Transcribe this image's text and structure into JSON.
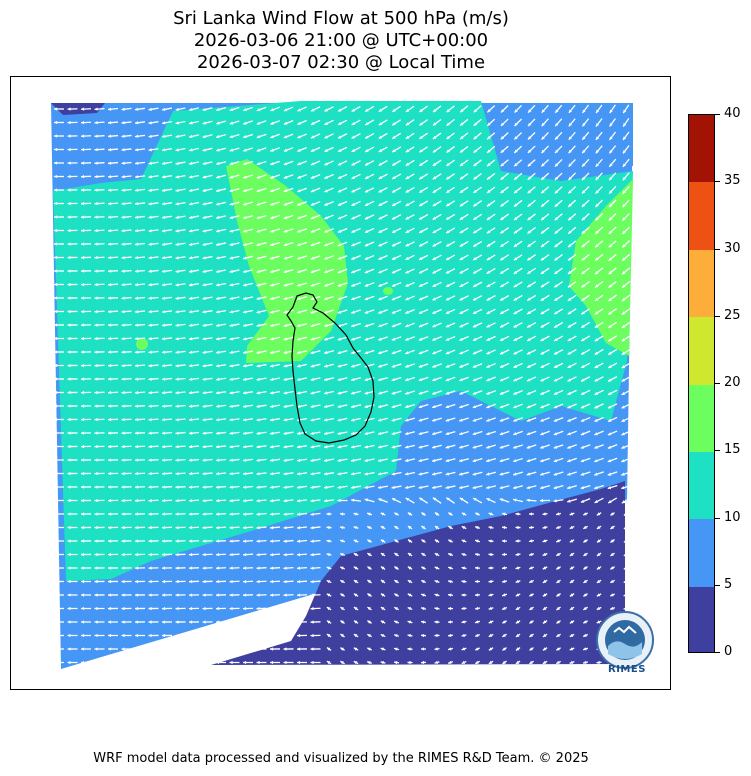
{
  "title": {
    "line1": "Sri Lanka Wind Flow at 500 hPa (m/s)",
    "line2": "2026-03-06 21:00 @ UTC+00:00",
    "line3": "2026-03-07 02:30 @ Local Time"
  },
  "colorbar": {
    "ticks": [
      "0",
      "5",
      "10",
      "15",
      "20",
      "25",
      "30",
      "35",
      "40"
    ],
    "levels": [
      {
        "from": 0,
        "to": 5,
        "color": "#3f3f9f"
      },
      {
        "from": 5,
        "to": 10,
        "color": "#4596f5"
      },
      {
        "from": 10,
        "to": 15,
        "color": "#1ee0c2"
      },
      {
        "from": 15,
        "to": 20,
        "color": "#6cfd5e"
      },
      {
        "from": 20,
        "to": 25,
        "color": "#d0e72f"
      },
      {
        "from": 25,
        "to": 30,
        "color": "#fdae3a"
      },
      {
        "from": 30,
        "to": 35,
        "color": "#ed5113"
      },
      {
        "from": 35,
        "to": 40,
        "color": "#a31303"
      }
    ]
  },
  "logo": {
    "text": "RIMES",
    "icon": "rimes-logo"
  },
  "footer": "WRF model data processed and visualized by the RIMES R&D Team. © 2025"
}
